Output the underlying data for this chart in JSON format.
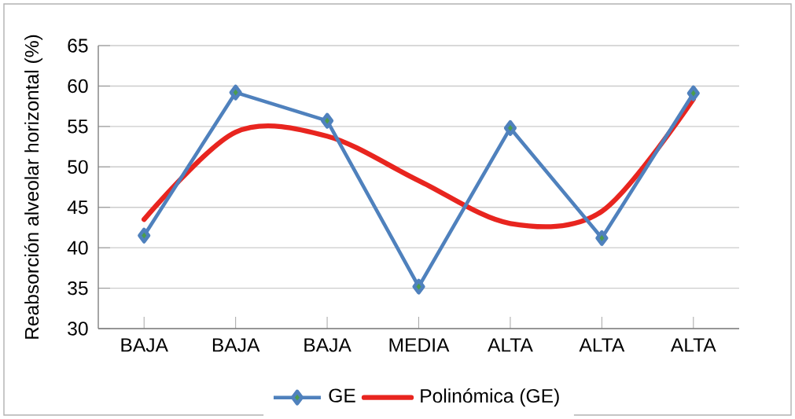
{
  "chart_data": {
    "type": "line",
    "ylabel": "Reabsorción alveolar horizontal  (%)",
    "categories": [
      "BAJA",
      "BAJA",
      "BAJA",
      "MEDIA",
      "ALTA",
      "ALTA",
      "ALTA"
    ],
    "series": [
      {
        "name": "GE",
        "color": "#4f81bd",
        "marker": "diamond",
        "values": [
          41.5,
          59.2,
          55.7,
          35.2,
          54.8,
          41.2,
          59.1
        ]
      },
      {
        "name": "Polinómica (GE)",
        "color": "#e8251f",
        "marker": "none",
        "values": [
          43.5,
          54.3,
          53.8,
          48.3,
          43.0,
          44.5,
          58.4
        ]
      }
    ],
    "ylim": [
      30,
      65
    ],
    "yticks": [
      30,
      35,
      40,
      45,
      50,
      55,
      60,
      65
    ],
    "grid": "y",
    "legend": "bottom"
  }
}
